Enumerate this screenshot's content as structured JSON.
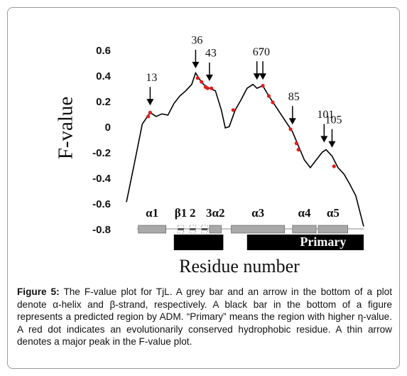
{
  "chart_data": {
    "type": "line",
    "ylabel": "F-value",
    "xlabel": "Residue number",
    "xlim": [
      1,
      121
    ],
    "ylim": [
      -0.8,
      0.6
    ],
    "yticks": [
      -0.8,
      -0.6,
      -0.4,
      -0.2,
      0,
      0.2,
      0.4,
      0.6
    ],
    "grid": false,
    "x": [
      1,
      5,
      9,
      13,
      16,
      19,
      22,
      25,
      28,
      31,
      34,
      36,
      38,
      40,
      43,
      46,
      49,
      51,
      53,
      56,
      59,
      62,
      65,
      67,
      70,
      73,
      76,
      79,
      82,
      85,
      88,
      91,
      94,
      97,
      100,
      102,
      105,
      108,
      111,
      114,
      117,
      121
    ],
    "series": [
      {
        "color": "#000000",
        "values": [
          -0.58,
          -0.28,
          0.03,
          0.12,
          0.09,
          0.11,
          0.1,
          0.19,
          0.25,
          0.29,
          0.34,
          0.43,
          0.38,
          0.34,
          0.31,
          0.29,
          0.14,
          0,
          0.01,
          0.14,
          0.22,
          0.31,
          0.34,
          0.31,
          0.33,
          0.25,
          0.18,
          0.11,
          0.04,
          -0.03,
          -0.14,
          -0.25,
          -0.31,
          -0.25,
          -0.19,
          -0.17,
          -0.22,
          -0.31,
          -0.36,
          -0.44,
          -0.53,
          -0.77
        ]
      },
      {
        "color": "#e0201b",
        "x": [
          12,
          13,
          37,
          39,
          41,
          42,
          44,
          55,
          70,
          73,
          75,
          84,
          87,
          88,
          106
        ],
        "values": [
          0.09,
          0.12,
          0.39,
          0.36,
          0.32,
          0.31,
          0.31,
          0.14,
          0.33,
          0.25,
          0.2,
          -0.01,
          -0.12,
          -0.17,
          -0.3
        ]
      }
    ],
    "annotations": [
      {
        "text": "13",
        "x": 13,
        "y": 0.16
      },
      {
        "text": "36",
        "x": 36,
        "y": 0.45
      },
      {
        "text": "43",
        "x": 43,
        "y": 0.35
      },
      {
        "text": "67",
        "x": 67,
        "y": 0.36
      },
      {
        "text": "70",
        "x": 70,
        "y": 0.36
      },
      {
        "text": "85",
        "x": 85,
        "y": 0.01
      },
      {
        "text": "101",
        "x": 101,
        "y": -0.13
      },
      {
        "text": "105",
        "x": 105,
        "y": -0.17
      }
    ],
    "structure": [
      {
        "label": "α1",
        "kind": "helix",
        "start": 7,
        "end": 21
      },
      {
        "label": "β1",
        "kind": "strand",
        "start": 27,
        "end": 30
      },
      {
        "label": "2",
        "kind": "strand",
        "start": 33,
        "end": 36
      },
      {
        "label": null,
        "kind": "strand",
        "start": 39,
        "end": 42
      },
      {
        "label": "3α2",
        "kind": "helix",
        "start": 43,
        "end": 49
      },
      {
        "label": "α3",
        "kind": "helix",
        "start": 54,
        "end": 81
      },
      {
        "label": "α4",
        "kind": "helix",
        "start": 85,
        "end": 97
      },
      {
        "label": "α5",
        "kind": "helix",
        "start": 98,
        "end": 113
      }
    ],
    "adm_regions": [
      {
        "label": null,
        "start": 25,
        "end": 50
      },
      {
        "label": "Primary",
        "start": 62,
        "end": 121
      }
    ]
  },
  "caption": {
    "label": "Figure 5:",
    "text": "The F-value plot for TjL. A grey bar and an arrow in the bottom of a plot denote α-helix and β-strand, respectively. A black bar in the bottom of a figure represents a predicted region by ADM. “Primary” means the region with higher η-value. A red dot indicates an evolutionarily conserved hydrophobic residue. A thin arrow denotes a major peak in the F-value plot."
  }
}
